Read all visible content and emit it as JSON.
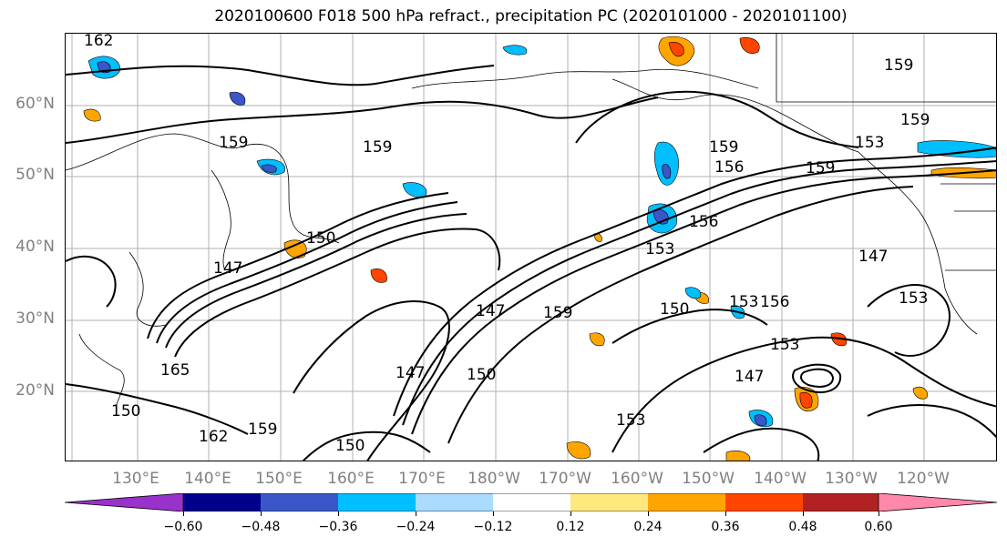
{
  "title": "2020100600 F018 500 hPa refract., precipitation PC (2020101000 - 2020101100)",
  "lat_labels": [
    "60°N",
    "50°N",
    "40°N",
    "30°N",
    "20°N"
  ],
  "lon_labels": [
    "130°E",
    "140°E",
    "150°E",
    "160°E",
    "170°E",
    "180°W",
    "170°W",
    "160°W",
    "150°W",
    "140°W",
    "130°W",
    "120°W"
  ],
  "colorbar": {
    "ticks": [
      "−0.60",
      "−0.48",
      "−0.36",
      "−0.24",
      "−0.12",
      "0.12",
      "0.24",
      "0.36",
      "0.48",
      "0.60"
    ],
    "colors": [
      "#9932cc",
      "#00008b",
      "#3a56c8",
      "#00bfff",
      "#aadcff",
      "#ffffff",
      "#ffe97f",
      "#ffa500",
      "#ff4500",
      "#b22222",
      "#ff88aa"
    ]
  },
  "contour_labels": {
    "c162a": "162",
    "c159a": "159",
    "c159b": "159",
    "c159c": "159",
    "c159d": "159",
    "c159e": "159",
    "c159f": "159",
    "c159g": "159",
    "c156a": "156",
    "c156b": "156",
    "c156c": "156",
    "c153a": "153",
    "c153b": "153",
    "c153c": "153",
    "c153d": "153",
    "c153e": "153",
    "c150a": "150",
    "c150b": "150",
    "c150c": "150",
    "c150d": "150",
    "c150e": "150",
    "c147a": "147",
    "c147b": "147",
    "c147c": "147",
    "c147d": "147",
    "c147e": "147",
    "c162b": "162",
    "c159h": "159",
    "c165": "165",
    "c153f": "153"
  }
}
